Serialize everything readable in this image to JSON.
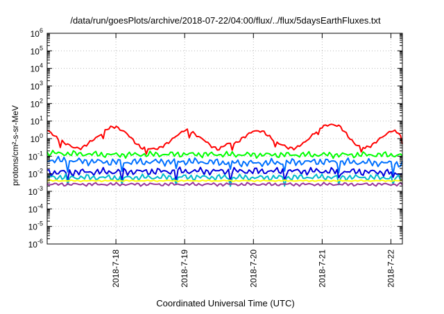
{
  "chart_data": {
    "type": "line",
    "title": "/data/run/goesPlots/archive/2018-07-22/04:00/flux/../flux/5daysEarthFluxes.txt",
    "xlabel": "Coordinated Universal Time (UTC)",
    "ylabel": "protons/cm²-s-sr-MeV",
    "y_scale": "log",
    "ylim": [
      1e-06,
      1000000.0
    ],
    "xlim": [
      "2018-07-17 00:00",
      "2018-07-22 04:00"
    ],
    "grid": true,
    "legend": "none",
    "x_ticks": [
      "2018-7-18",
      "2018-7-19",
      "2018-7-20",
      "2018-7-21",
      "2018-7-22"
    ],
    "y_ticks": [
      {
        "base": "10",
        "exp": "6"
      },
      {
        "base": "10",
        "exp": "5"
      },
      {
        "base": "10",
        "exp": "4"
      },
      {
        "base": "10",
        "exp": "3"
      },
      {
        "base": "10",
        "exp": "2"
      },
      {
        "base": "10",
        "exp": "1"
      },
      {
        "base": "10",
        "exp": "0"
      },
      {
        "base": "10",
        "exp": "-1"
      },
      {
        "base": "10",
        "exp": "-2"
      },
      {
        "base": "10",
        "exp": "-3"
      },
      {
        "base": "10",
        "exp": "-4"
      },
      {
        "base": "10",
        "exp": "-5"
      },
      {
        "base": "10",
        "exp": "-6"
      }
    ],
    "series": [
      {
        "color": "#ff0000",
        "x": [
          "2018-07-17 00:00",
          "2018-07-17 03:00",
          "2018-07-17 06:00",
          "2018-07-17 09:00",
          "2018-07-17 12:00",
          "2018-07-17 15:00",
          "2018-07-17 18:00",
          "2018-07-17 21:00",
          "2018-07-18 00:00",
          "2018-07-18 03:00",
          "2018-07-18 06:00",
          "2018-07-18 09:00",
          "2018-07-18 12:00",
          "2018-07-18 15:00",
          "2018-07-18 18:00",
          "2018-07-18 21:00",
          "2018-07-19 00:00",
          "2018-07-19 03:00",
          "2018-07-19 06:00",
          "2018-07-19 09:00",
          "2018-07-19 12:00",
          "2018-07-19 15:00",
          "2018-07-19 18:00",
          "2018-07-19 21:00",
          "2018-07-20 00:00",
          "2018-07-20 03:00",
          "2018-07-20 06:00",
          "2018-07-20 09:00",
          "2018-07-20 12:00",
          "2018-07-20 15:00",
          "2018-07-20 18:00",
          "2018-07-20 21:00",
          "2018-07-21 00:00",
          "2018-07-21 03:00",
          "2018-07-21 06:00",
          "2018-07-21 09:00",
          "2018-07-21 12:00",
          "2018-07-21 15:00",
          "2018-07-21 18:00",
          "2018-07-21 21:00",
          "2018-07-22 00:00",
          "2018-07-22 03:00",
          "2018-07-22 04:00"
        ],
        "values": [
          3,
          1.2,
          0.6,
          0.3,
          0.3,
          0.6,
          1.5,
          3.5,
          5,
          2.5,
          0.8,
          0.3,
          0.25,
          0.3,
          0.5,
          1.5,
          3,
          2.2,
          1,
          0.4,
          0.25,
          0.5,
          0.6,
          1.2,
          3,
          2.5,
          1.2,
          0.5,
          0.3,
          0.3,
          0.6,
          2,
          4.5,
          7,
          5,
          1.5,
          0.4,
          0.3,
          0.5,
          1.2,
          3,
          2,
          0.5
        ]
      },
      {
        "color": "#00ff00",
        "x": [
          "2018-07-17 00:00",
          "2018-07-18 00:00",
          "2018-07-19 00:00",
          "2018-07-20 00:00",
          "2018-07-21 00:00",
          "2018-07-22 00:00",
          "2018-07-22 04:00"
        ],
        "values": [
          0.15,
          0.12,
          0.13,
          0.12,
          0.12,
          0.12,
          0.11
        ]
      },
      {
        "color": "#0070ff",
        "x": [
          "2018-07-17 00:00",
          "2018-07-18 00:00",
          "2018-07-19 00:00",
          "2018-07-20 00:00",
          "2018-07-21 00:00",
          "2018-07-22 00:00",
          "2018-07-22 04:00"
        ],
        "values": [
          0.06,
          0.045,
          0.05,
          0.04,
          0.05,
          0.04,
          0.035
        ]
      },
      {
        "color": "#0000dd",
        "x": [
          "2018-07-17 00:00",
          "2018-07-18 00:00",
          "2018-07-19 00:00",
          "2018-07-20 00:00",
          "2018-07-21 00:00",
          "2018-07-22 00:00",
          "2018-07-22 04:00"
        ],
        "values": [
          0.012,
          0.013,
          0.014,
          0.014,
          0.014,
          0.012,
          0.01
        ]
      },
      {
        "color": "#00bbcc",
        "x": [
          "2018-07-17 00:00",
          "2018-07-18 00:00",
          "2018-07-19 00:00",
          "2018-07-20 00:00",
          "2018-07-21 00:00",
          "2018-07-22 00:00",
          "2018-07-22 04:00"
        ],
        "values": [
          0.0065,
          0.006,
          0.0065,
          0.006,
          0.0065,
          0.006,
          0.0055
        ]
      },
      {
        "color": "#ffff00",
        "x": [
          "2018-07-17 00:00",
          "2018-07-18 00:00",
          "2018-07-19 00:00",
          "2018-07-20 00:00",
          "2018-07-21 00:00",
          "2018-07-22 00:00",
          "2018-07-22 04:00"
        ],
        "values": [
          0.004,
          0.004,
          0.004,
          0.004,
          0.004,
          0.004,
          0.004
        ]
      },
      {
        "color": "#993399",
        "x": [
          "2018-07-17 00:00",
          "2018-07-18 00:00",
          "2018-07-19 00:00",
          "2018-07-20 00:00",
          "2018-07-21 00:00",
          "2018-07-22 00:00",
          "2018-07-22 04:00"
        ],
        "values": [
          0.0025,
          0.0025,
          0.0025,
          0.0025,
          0.0025,
          0.0025,
          0.0025
        ]
      }
    ]
  }
}
